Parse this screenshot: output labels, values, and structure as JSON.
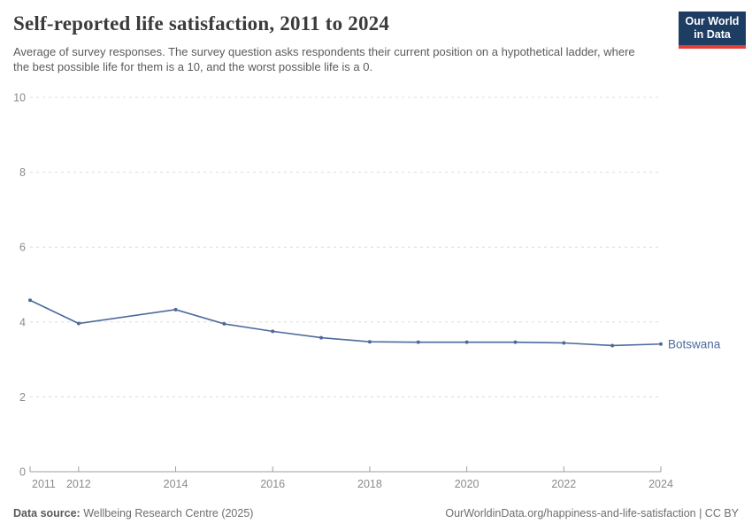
{
  "header": {
    "title": "Self-reported life satisfaction, 2011 to 2024",
    "subtitle": "Average of survey responses. The survey question asks respondents their current position on a hypothetical ladder, where the best possible life for them is a 10, and the worst possible life is a 0.",
    "logo": {
      "line1": "Our World",
      "line2": "in Data",
      "bg_color": "#1d3d63",
      "accent_color": "#e63e36"
    }
  },
  "chart_data": {
    "type": "line",
    "title": "Self-reported life satisfaction, 2011 to 2024",
    "xlabel": "",
    "ylabel": "",
    "xlim": [
      2011,
      2024
    ],
    "ylim": [
      0,
      10
    ],
    "y_ticks": [
      0,
      2,
      4,
      6,
      8,
      10
    ],
    "x_ticks": [
      2011,
      2012,
      2014,
      2016,
      2018,
      2020,
      2022,
      2024
    ],
    "grid": "horizontal-dashed",
    "legend_position": "end-of-line-label",
    "series": [
      {
        "name": "Botswana",
        "color": "#4C6A9C",
        "points": [
          {
            "x": 2011,
            "y": 4.58
          },
          {
            "x": 2012,
            "y": 3.96
          },
          {
            "x": 2014,
            "y": 4.33
          },
          {
            "x": 2015,
            "y": 3.95
          },
          {
            "x": 2016,
            "y": 3.75
          },
          {
            "x": 2017,
            "y": 3.58
          },
          {
            "x": 2018,
            "y": 3.47
          },
          {
            "x": 2019,
            "y": 3.46
          },
          {
            "x": 2020,
            "y": 3.46
          },
          {
            "x": 2021,
            "y": 3.46
          },
          {
            "x": 2022,
            "y": 3.44
          },
          {
            "x": 2023,
            "y": 3.37
          },
          {
            "x": 2024,
            "y": 3.41
          }
        ]
      }
    ]
  },
  "footer": {
    "datasource_label": "Data source:",
    "datasource_value": "Wellbeing Research Centre (2025)",
    "attribution": "OurWorldinData.org/happiness-and-life-satisfaction | CC BY"
  }
}
